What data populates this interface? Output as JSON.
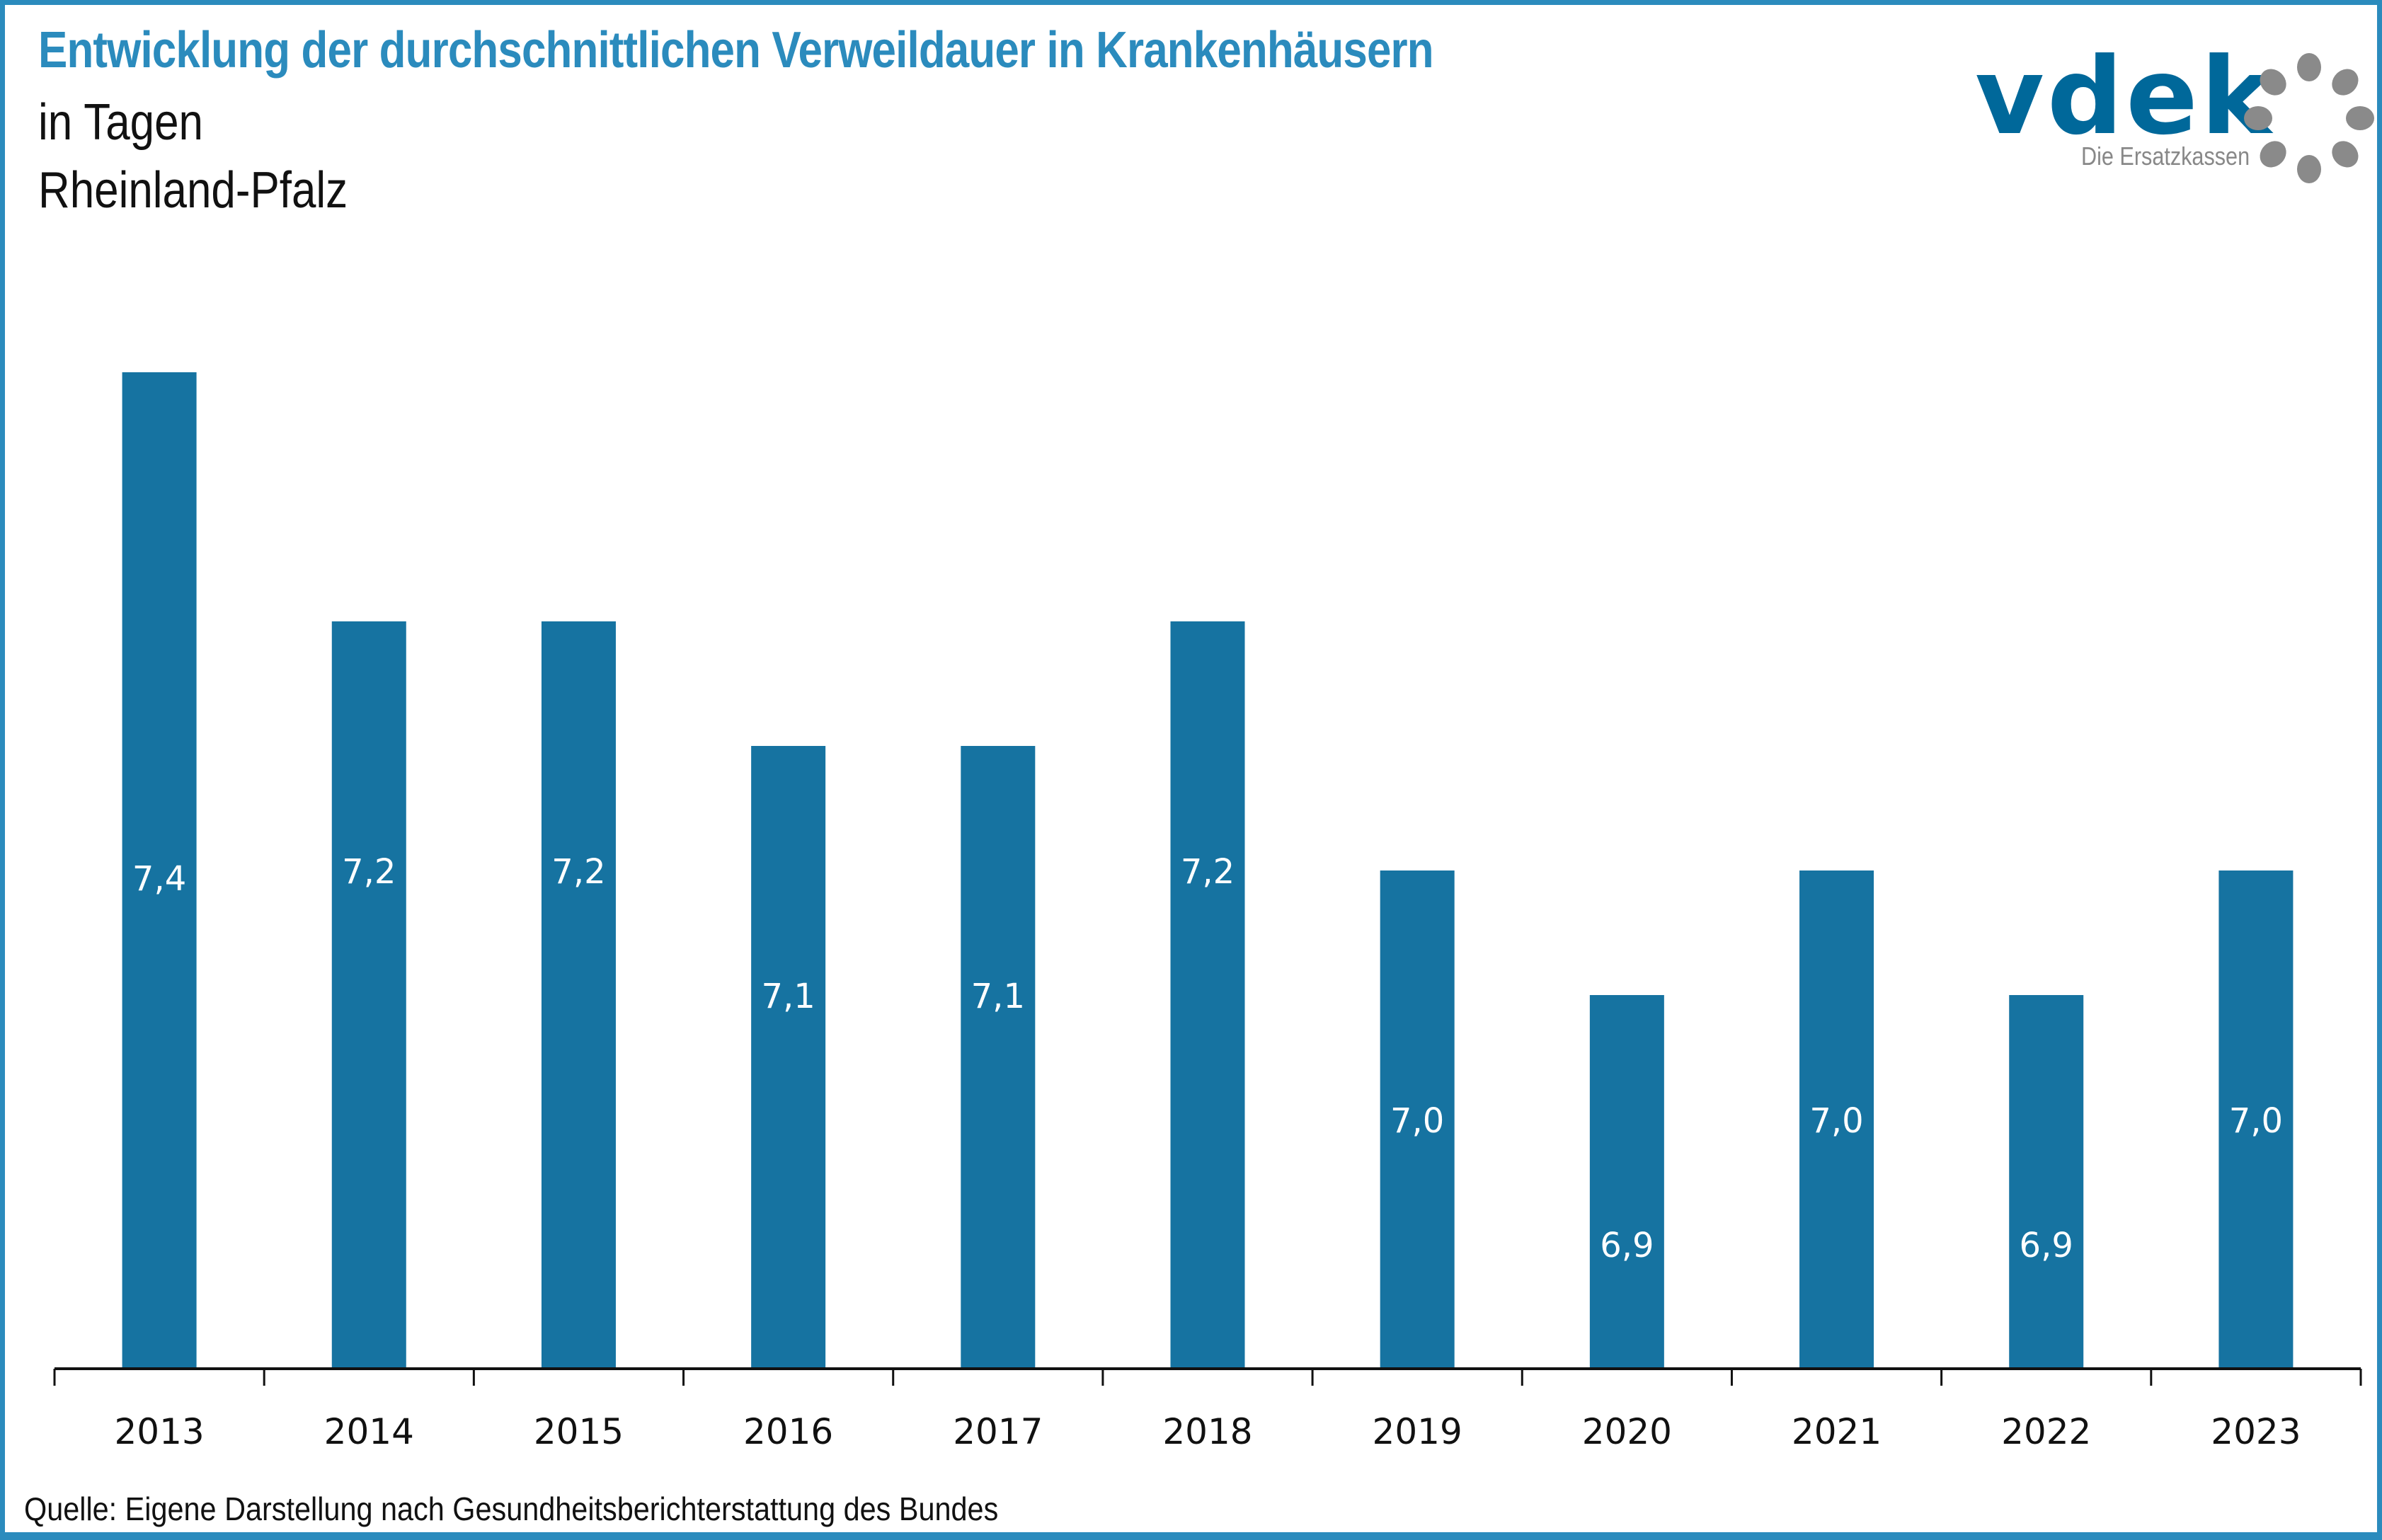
{
  "header": {
    "title": "Entwicklung der durchschnittlichen Verweildauer in Krankenhäusern",
    "unit": "in Tagen",
    "region": "Rheinland-Pfalz"
  },
  "logo": {
    "name": "vdek",
    "tagline": "Die Ersatzkassen",
    "icon": "dotted-ring-icon"
  },
  "colors": {
    "accent": "#2b8bbd",
    "bar": "#1673a1",
    "logo_blue": "#00689a",
    "logo_gray": "#8a8a8a"
  },
  "footer": {
    "source": "Quelle: Eigene Darstellung nach Gesundheitsberichterstattung des Bundes"
  },
  "chart_data": {
    "type": "bar",
    "title": "Entwicklung der durchschnittlichen Verweildauer in Krankenhäusern",
    "subtitle": "in Tagen – Rheinland-Pfalz",
    "xlabel": "",
    "ylabel": "",
    "categories": [
      "2013",
      "2014",
      "2015",
      "2016",
      "2017",
      "2018",
      "2019",
      "2020",
      "2021",
      "2022",
      "2023"
    ],
    "values": [
      7.4,
      7.2,
      7.2,
      7.1,
      7.1,
      7.2,
      7.0,
      6.9,
      7.0,
      6.9,
      7.0
    ],
    "data_labels": [
      "7,4",
      "7,2",
      "7,2",
      "7,1",
      "7,1",
      "7,2",
      "7,0",
      "6,9",
      "7,0",
      "6,9",
      "7,0"
    ],
    "ylim": [
      6.6,
      7.5
    ],
    "y_axis_visible": false,
    "grid": false,
    "legend": "none"
  }
}
